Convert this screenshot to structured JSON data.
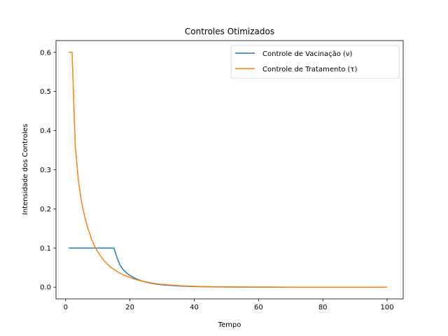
{
  "chart_data": {
    "type": "line",
    "title": "Controles Otimizados",
    "xlabel": "Tempo",
    "ylabel": "Intensidade dos Controles",
    "xlim": [
      -3,
      105
    ],
    "ylim": [
      -0.03,
      0.63
    ],
    "xticks": [
      0,
      20,
      40,
      60,
      80,
      100
    ],
    "yticks": [
      0.0,
      0.1,
      0.2,
      0.3,
      0.4,
      0.5,
      0.6
    ],
    "xtick_labels": [
      "0",
      "20",
      "40",
      "60",
      "80",
      "100"
    ],
    "ytick_labels": [
      "0.0",
      "0.1",
      "0.2",
      "0.3",
      "0.4",
      "0.5",
      "0.6"
    ],
    "grid": false,
    "legend": "top-right",
    "series": [
      {
        "name": "Controle de Vacinação (ν)",
        "color": "#1f77b4",
        "x": [
          1,
          2,
          4,
          6,
          8,
          10,
          12,
          14,
          15,
          16,
          17,
          18,
          19,
          20,
          22,
          24,
          26,
          28,
          30,
          35,
          40,
          45,
          50,
          60,
          70,
          80,
          90,
          100
        ],
        "values": [
          0.1,
          0.1,
          0.1,
          0.1,
          0.1,
          0.1,
          0.1,
          0.1,
          0.1,
          0.075,
          0.055,
          0.044,
          0.036,
          0.03,
          0.021,
          0.015,
          0.011,
          0.008,
          0.006,
          0.003,
          0.0015,
          0.0008,
          0.0004,
          0.0001,
          0.0,
          0.0,
          0.0,
          0.0
        ]
      },
      {
        "name": "Controle de Tratamento (τ)",
        "color": "#ff7f0e",
        "x": [
          1,
          2,
          3,
          4,
          5,
          6,
          7,
          8,
          9,
          10,
          12,
          14,
          16,
          18,
          20,
          22,
          24,
          26,
          28,
          30,
          35,
          40,
          45,
          50,
          60,
          70,
          80,
          90,
          100
        ],
        "values": [
          0.6,
          0.6,
          0.36,
          0.27,
          0.215,
          0.178,
          0.148,
          0.124,
          0.105,
          0.09,
          0.067,
          0.051,
          0.04,
          0.031,
          0.025,
          0.019,
          0.015,
          0.012,
          0.009,
          0.007,
          0.004,
          0.0022,
          0.0012,
          0.0007,
          0.0002,
          0.0,
          0.0,
          0.0,
          0.0
        ]
      }
    ]
  }
}
